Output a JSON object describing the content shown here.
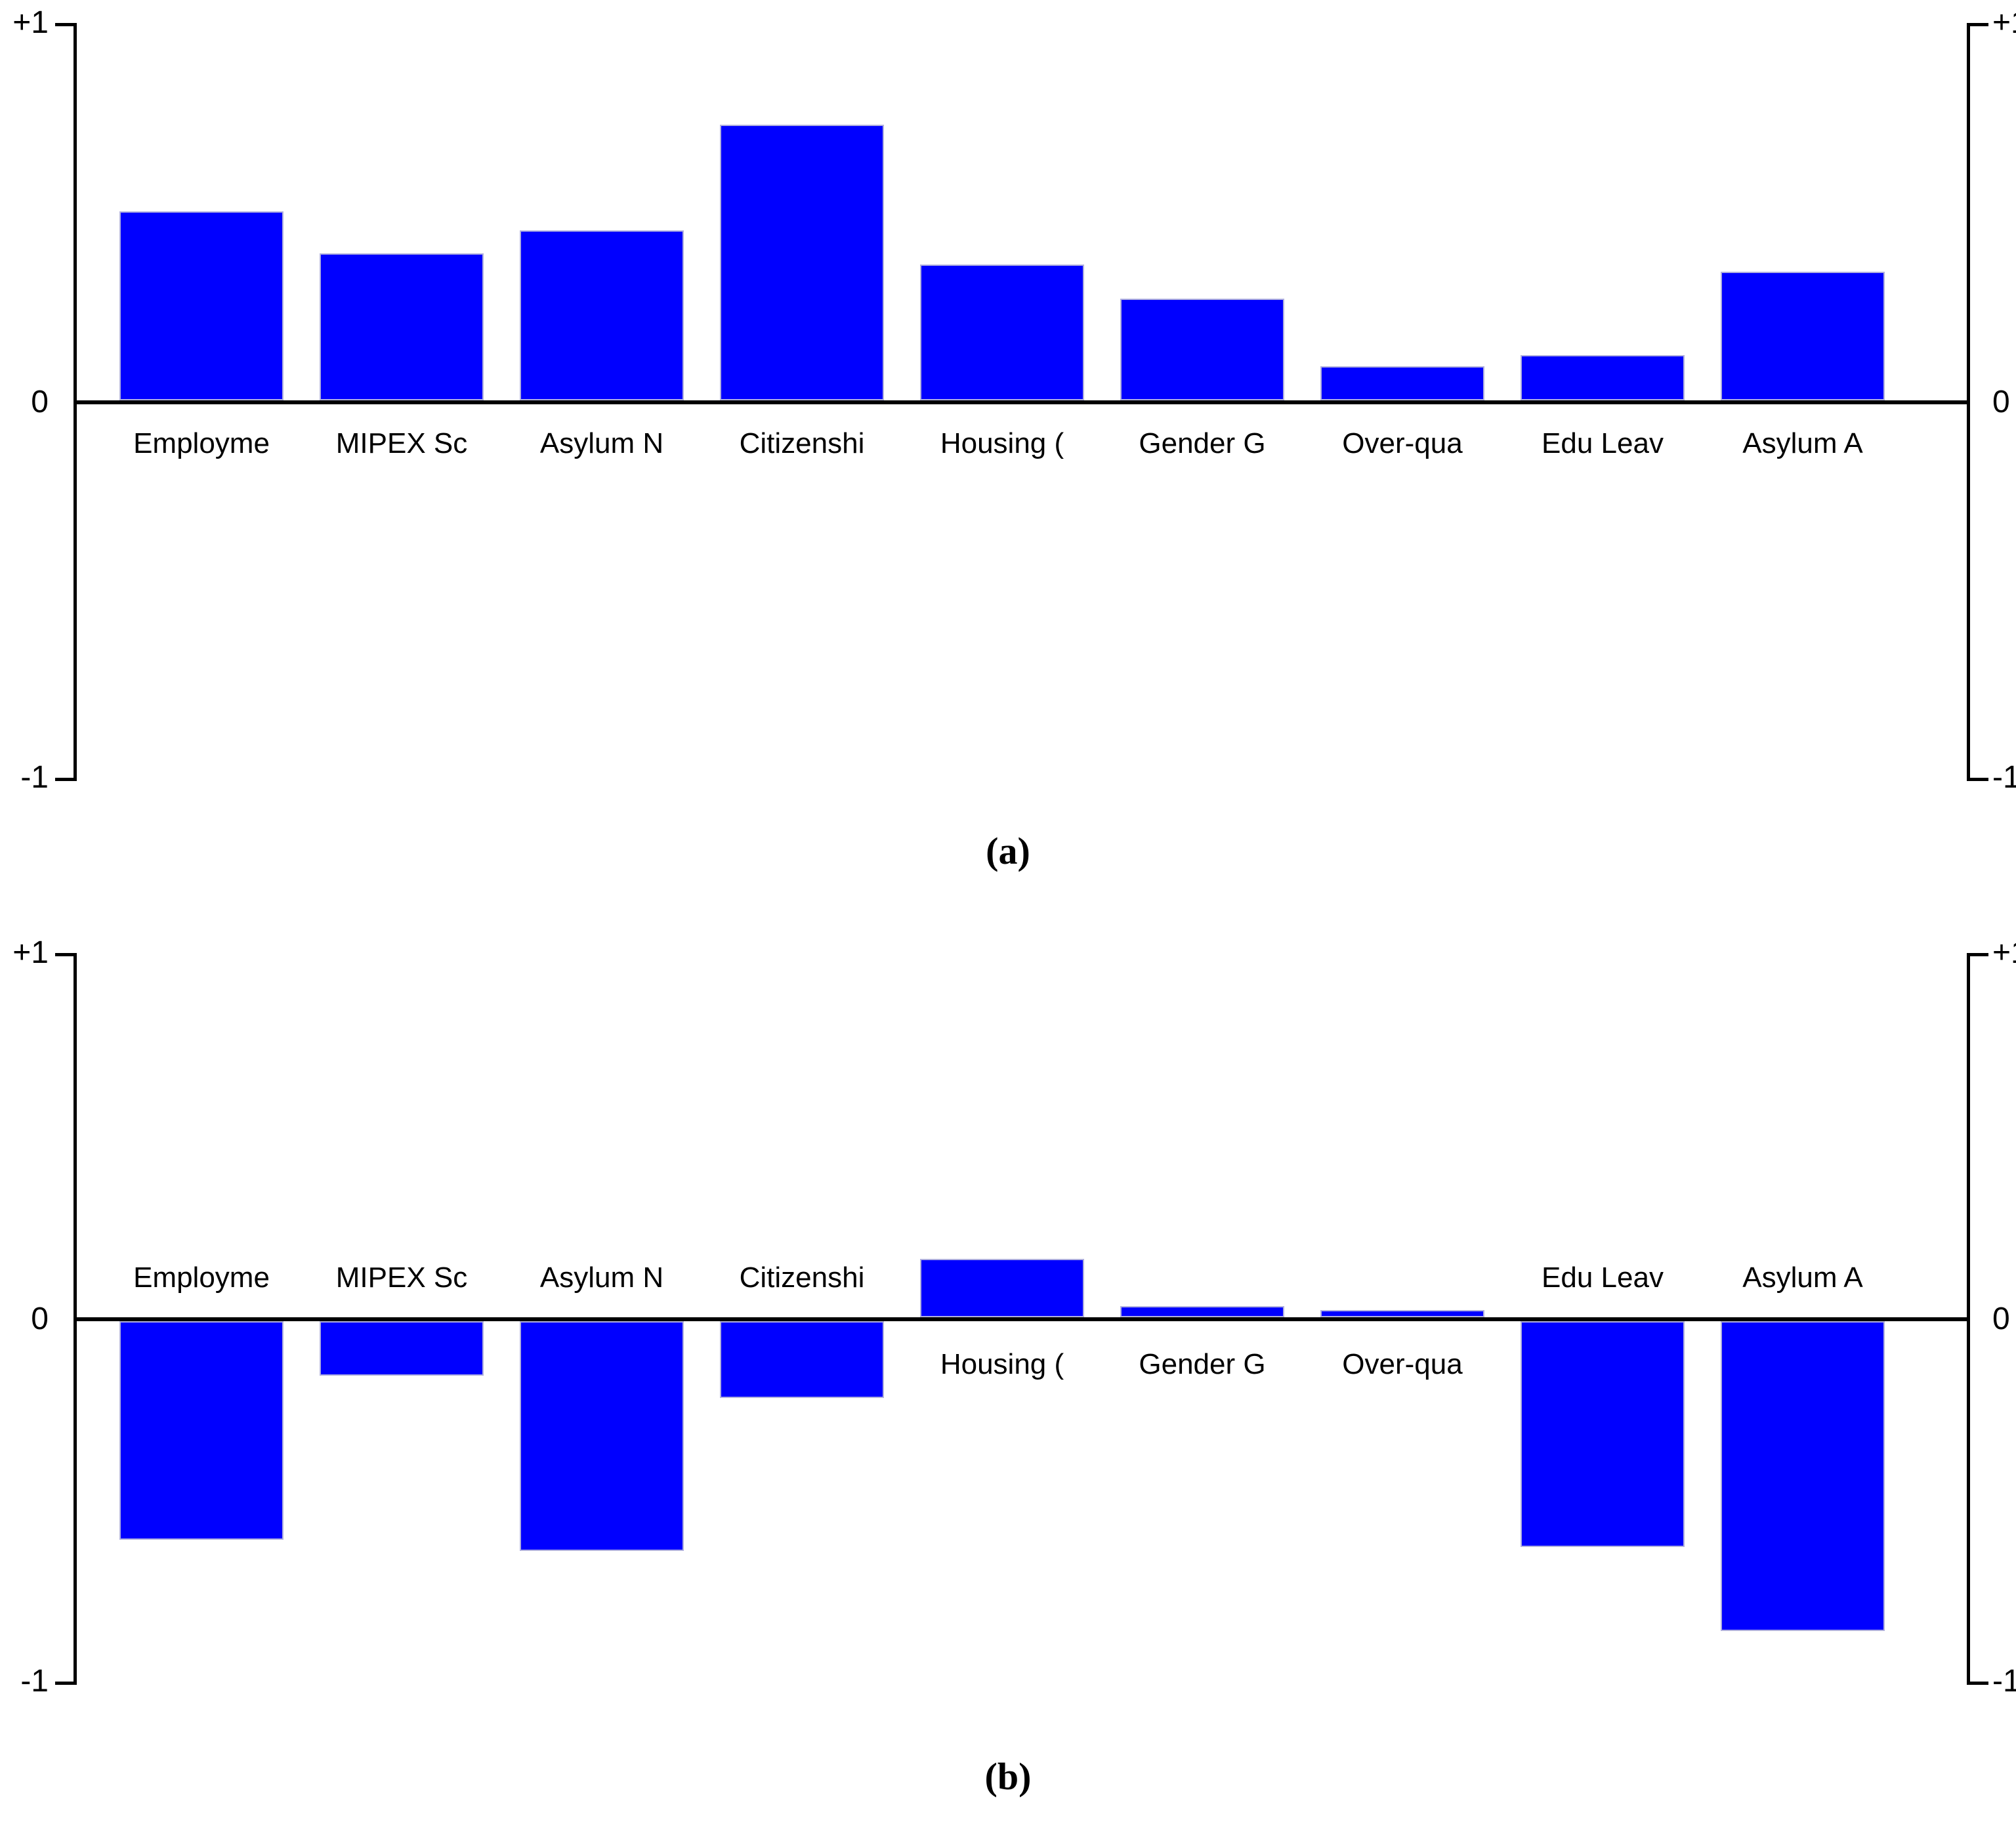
{
  "figure": {
    "background": "#ffffff",
    "caption_a": "(a)",
    "caption_b": "(b)"
  },
  "chart_data": [
    {
      "type": "bar",
      "title": "(a)",
      "categories": [
        "Employme",
        "MIPEX Sc",
        "Asylum N",
        "Citizenshi",
        "Housing (",
        "Gender G",
        "Over-qua",
        "Edu Leav",
        "Asylum A"
      ],
      "values": [
        0.5,
        0.39,
        0.45,
        0.73,
        0.36,
        0.27,
        0.09,
        0.12,
        0.34
      ],
      "xlabel": "",
      "ylabel": "",
      "ylim": [
        -1,
        1
      ],
      "ytick_labels": [
        "+1",
        "0",
        "-1"
      ],
      "ytick_values": [
        1,
        0,
        -1
      ],
      "grid": false,
      "legend": "none",
      "bar_color": "#0000ff",
      "bar_border_color": "#b0b0de",
      "axis_color": "#000000",
      "y_axis_sides": "both",
      "category_label_position": "below zero line"
    },
    {
      "type": "bar",
      "title": "(b)",
      "categories": [
        "Employme",
        "MIPEX Sc",
        "Asylum N",
        "Citizenshi",
        "Housing (",
        "Gender G",
        "Over-qua",
        "Edu Leav",
        "Asylum A"
      ],
      "values": [
        -0.6,
        -0.15,
        -0.63,
        -0.21,
        0.16,
        0.03,
        0.02,
        -0.62,
        -0.85
      ],
      "xlabel": "",
      "ylabel": "",
      "ylim": [
        -1,
        1
      ],
      "ytick_labels": [
        "+1",
        "0",
        "-1"
      ],
      "ytick_values": [
        1,
        0,
        -1
      ],
      "grid": false,
      "legend": "none",
      "bar_color": "#0000ff",
      "bar_border_color": "#b0b0de",
      "axis_color": "#000000",
      "y_axis_sides": "both",
      "category_label_position": "opposite side of bar relative to zero line"
    }
  ]
}
